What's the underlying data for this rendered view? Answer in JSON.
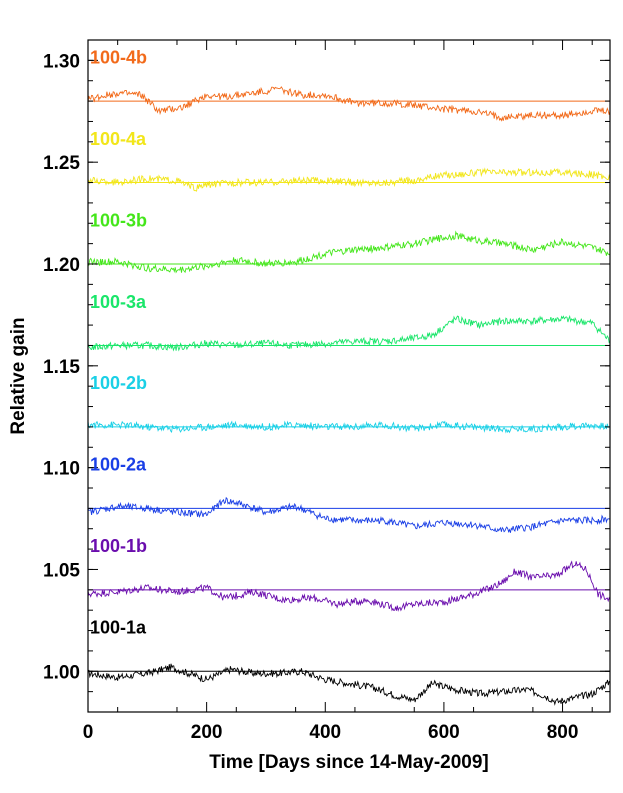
{
  "chart_data": {
    "type": "line",
    "title": "",
    "xlabel": "Time [Days since 14-May-2009]",
    "ylabel": "Relative gain",
    "xlim": [
      0,
      880
    ],
    "ylim": [
      0.98,
      1.31
    ],
    "xticks": [
      0,
      200,
      400,
      600,
      800
    ],
    "xtick_labels": [
      "0",
      "200",
      "400",
      "600",
      "800"
    ],
    "yticks": [
      1.0,
      1.05,
      1.1,
      1.15,
      1.2,
      1.25,
      1.3
    ],
    "ytick_labels": [
      "1.00",
      "1.05",
      "1.10",
      "1.15",
      "1.20",
      "1.25",
      "1.30"
    ],
    "grid": false,
    "legend": "inline labels at left",
    "series": [
      {
        "name": "100-1a",
        "color": "#000000",
        "baseline": 1.0,
        "x": [
          0,
          50,
          100,
          140,
          160,
          200,
          240,
          280,
          320,
          360,
          400,
          440,
          480,
          520,
          550,
          580,
          620,
          660,
          700,
          740,
          770,
          790,
          820,
          850,
          870,
          880
        ],
        "y": [
          0.999,
          0.997,
          0.999,
          1.002,
          1.0,
          0.996,
          1.001,
          0.999,
          0.999,
          1.0,
          0.996,
          0.994,
          0.992,
          0.988,
          0.986,
          0.994,
          0.991,
          0.989,
          0.99,
          0.991,
          0.988,
          0.985,
          0.987,
          0.989,
          0.993,
          0.995
        ]
      },
      {
        "name": "100-1b",
        "color": "#6a0dad",
        "baseline": 1.04,
        "x": [
          0,
          50,
          100,
          150,
          200,
          230,
          280,
          330,
          380,
          420,
          470,
          520,
          550,
          600,
          640,
          680,
          700,
          720,
          750,
          790,
          820,
          840,
          860,
          880
        ],
        "y": [
          1.038,
          1.039,
          1.041,
          1.039,
          1.041,
          1.036,
          1.039,
          1.035,
          1.036,
          1.033,
          1.035,
          1.031,
          1.033,
          1.034,
          1.037,
          1.041,
          1.044,
          1.049,
          1.046,
          1.047,
          1.053,
          1.05,
          1.038,
          1.035
        ]
      },
      {
        "name": "100-2a",
        "color": "#1a3fe6",
        "baseline": 1.08,
        "x": [
          0,
          50,
          100,
          150,
          200,
          230,
          260,
          300,
          350,
          400,
          450,
          500,
          550,
          600,
          650,
          700,
          750,
          800,
          850,
          880
        ],
        "y": [
          1.078,
          1.081,
          1.08,
          1.078,
          1.077,
          1.084,
          1.082,
          1.078,
          1.081,
          1.075,
          1.074,
          1.074,
          1.071,
          1.073,
          1.072,
          1.069,
          1.071,
          1.074,
          1.074,
          1.075
        ]
      },
      {
        "name": "100-2b",
        "color": "#1ad0e6",
        "baseline": 1.12,
        "x": [
          0,
          50,
          100,
          150,
          200,
          250,
          300,
          350,
          400,
          450,
          500,
          550,
          600,
          650,
          700,
          750,
          800,
          850,
          880
        ],
        "y": [
          1.121,
          1.121,
          1.12,
          1.119,
          1.12,
          1.121,
          1.12,
          1.121,
          1.12,
          1.12,
          1.121,
          1.119,
          1.121,
          1.12,
          1.119,
          1.119,
          1.12,
          1.121,
          1.12
        ]
      },
      {
        "name": "100-3a",
        "color": "#1ae66a",
        "baseline": 1.16,
        "x": [
          0,
          50,
          100,
          150,
          200,
          250,
          300,
          350,
          400,
          450,
          500,
          540,
          580,
          620,
          660,
          700,
          750,
          800,
          850,
          880
        ],
        "y": [
          1.159,
          1.16,
          1.16,
          1.159,
          1.161,
          1.16,
          1.161,
          1.16,
          1.161,
          1.162,
          1.162,
          1.163,
          1.165,
          1.173,
          1.17,
          1.172,
          1.172,
          1.173,
          1.171,
          1.162
        ]
      },
      {
        "name": "100-3b",
        "color": "#44e61a",
        "baseline": 1.2,
        "x": [
          0,
          50,
          100,
          150,
          200,
          250,
          300,
          350,
          400,
          450,
          500,
          550,
          600,
          620,
          650,
          700,
          750,
          800,
          850,
          880
        ],
        "y": [
          1.201,
          1.201,
          1.198,
          1.197,
          1.199,
          1.202,
          1.2,
          1.201,
          1.205,
          1.207,
          1.208,
          1.21,
          1.213,
          1.214,
          1.212,
          1.21,
          1.207,
          1.211,
          1.208,
          1.205
        ]
      },
      {
        "name": "100-4a",
        "color": "#f2e61a",
        "baseline": 1.24,
        "x": [
          0,
          50,
          100,
          150,
          180,
          200,
          250,
          300,
          350,
          400,
          450,
          500,
          550,
          580,
          620,
          660,
          700,
          750,
          800,
          850,
          880
        ],
        "y": [
          1.241,
          1.24,
          1.242,
          1.241,
          1.237,
          1.239,
          1.24,
          1.24,
          1.241,
          1.241,
          1.24,
          1.24,
          1.241,
          1.243,
          1.244,
          1.245,
          1.245,
          1.245,
          1.245,
          1.244,
          1.242
        ]
      },
      {
        "name": "100-4b",
        "color": "#f26a1a",
        "baseline": 1.28,
        "x": [
          0,
          50,
          90,
          120,
          160,
          200,
          230,
          280,
          320,
          360,
          400,
          450,
          500,
          550,
          600,
          650,
          700,
          750,
          800,
          850,
          880
        ],
        "y": [
          1.281,
          1.284,
          1.283,
          1.275,
          1.277,
          1.283,
          1.282,
          1.284,
          1.286,
          1.283,
          1.283,
          1.279,
          1.279,
          1.278,
          1.276,
          1.275,
          1.272,
          1.273,
          1.273,
          1.275,
          1.275
        ]
      }
    ]
  }
}
